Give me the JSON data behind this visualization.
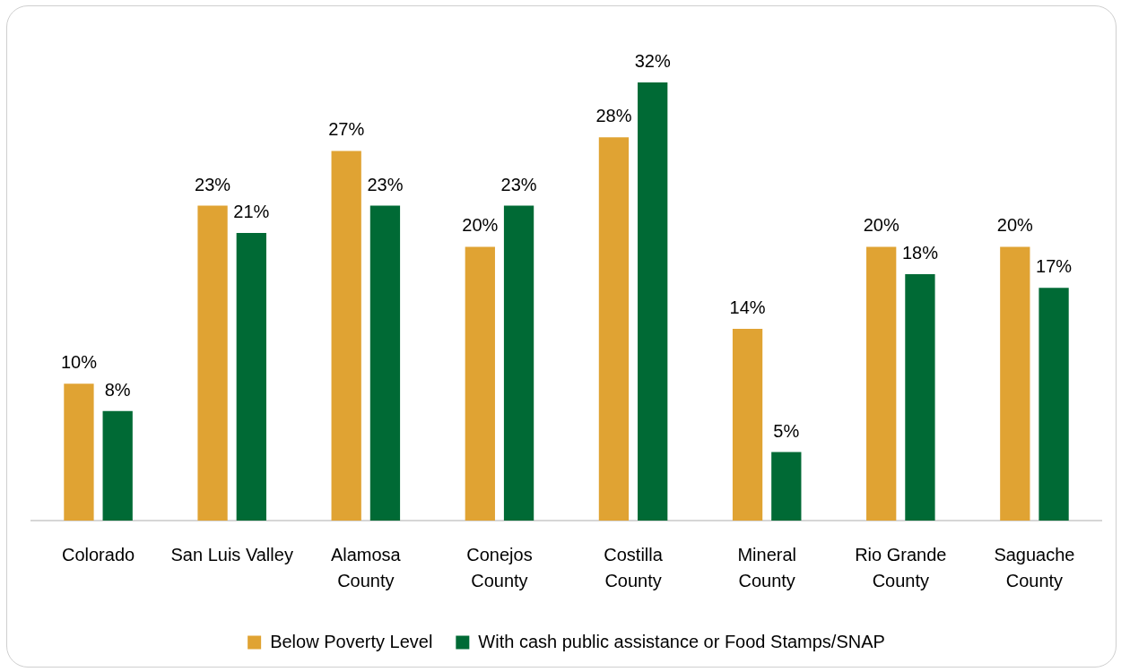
{
  "chart_data": {
    "type": "bar",
    "categories": [
      "Colorado",
      "San Luis Valley",
      "Alamosa\nCounty",
      "Conejos\nCounty",
      "Costilla\nCounty",
      "Mineral\nCounty",
      "Rio Grande\nCounty",
      "Saguache\nCounty"
    ],
    "series": [
      {
        "name": "Below Poverty Level",
        "color": "#e0a333",
        "values": [
          10,
          23,
          27,
          20,
          28,
          14,
          20,
          20
        ],
        "value_labels": [
          "10%",
          "23%",
          "27%",
          "20%",
          "28%",
          "14%",
          "20%",
          "20%"
        ]
      },
      {
        "name": "With cash public assistance or Food Stamps/SNAP",
        "color": "#006a35",
        "values": [
          8,
          21,
          23,
          23,
          32,
          5,
          18,
          17
        ],
        "value_labels": [
          "8%",
          "21%",
          "23%",
          "23%",
          "32%",
          "5%",
          "18%",
          "17%"
        ]
      }
    ],
    "legend": "bottom"
  }
}
